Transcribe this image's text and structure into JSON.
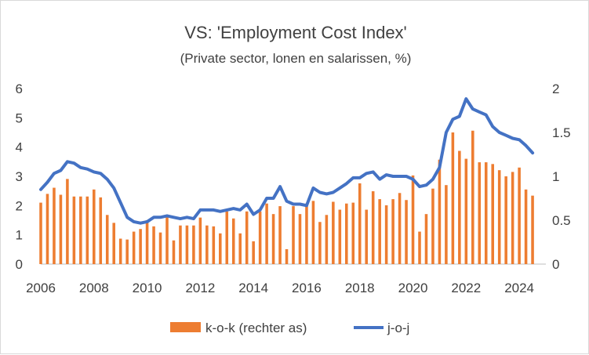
{
  "chart_data": {
    "type": "bar+line",
    "title": "VS: 'Employment Cost Index'",
    "subtitle": "(Private sector, lonen en salarissen, %)",
    "x_tick_labels": [
      "2006",
      "2008",
      "2010",
      "2012",
      "2014",
      "2016",
      "2018",
      "2020",
      "2022",
      "2024"
    ],
    "left_axis": {
      "ylim": [
        0,
        6
      ],
      "ticks": [
        "0",
        "1",
        "2",
        "3",
        "4",
        "5",
        "6"
      ]
    },
    "right_axis": {
      "ylim": [
        0,
        2
      ],
      "ticks": [
        "0",
        "0.5",
        "1",
        "1.5",
        "2"
      ]
    },
    "legend": {
      "placement": "bottom"
    },
    "series": [
      {
        "name": "k-o-k (rechter as)",
        "type": "bar",
        "axis": "right",
        "color": "#ED7D31",
        "start": "2006Q1",
        "frequency": "quarterly",
        "values": [
          0.7,
          0.8,
          0.87,
          0.79,
          0.97,
          0.77,
          0.77,
          0.77,
          0.85,
          0.76,
          0.56,
          0.47,
          0.29,
          0.28,
          0.37,
          0.4,
          0.5,
          0.43,
          0.36,
          0.54,
          0.27,
          0.44,
          0.44,
          0.44,
          0.53,
          0.44,
          0.43,
          0.35,
          0.6,
          0.52,
          0.35,
          0.6,
          0.26,
          0.6,
          0.69,
          0.57,
          0.66,
          0.17,
          0.66,
          0.57,
          0.69,
          0.72,
          0.48,
          0.56,
          0.71,
          0.62,
          0.69,
          0.7,
          0.92,
          0.62,
          0.83,
          0.74,
          0.67,
          0.74,
          0.81,
          0.73,
          1.01,
          0.37,
          0.57,
          0.86,
          1.19,
          0.9,
          1.5,
          1.29,
          1.2,
          1.52,
          1.16,
          1.16,
          1.14,
          1.07,
          1.0,
          1.05,
          1.1,
          0.85,
          0.78
        ]
      },
      {
        "name": "j-o-j",
        "type": "line",
        "axis": "left",
        "color": "#4472C4",
        "start": "2006Q1",
        "frequency": "quarterly",
        "values": [
          2.55,
          2.8,
          3.1,
          3.2,
          3.5,
          3.45,
          3.3,
          3.25,
          3.15,
          3.1,
          2.9,
          2.6,
          2.1,
          1.6,
          1.45,
          1.4,
          1.45,
          1.6,
          1.6,
          1.65,
          1.6,
          1.55,
          1.6,
          1.55,
          1.85,
          1.85,
          1.85,
          1.8,
          1.85,
          1.9,
          1.85,
          2.05,
          1.7,
          1.85,
          2.25,
          2.25,
          2.65,
          2.15,
          2.05,
          2.05,
          2.0,
          2.6,
          2.45,
          2.4,
          2.45,
          2.6,
          2.75,
          2.95,
          2.95,
          3.1,
          3.15,
          2.9,
          3.05,
          3.0,
          3.0,
          3.0,
          2.9,
          2.65,
          2.7,
          2.9,
          3.3,
          4.5,
          4.95,
          5.05,
          5.65,
          5.3,
          5.2,
          5.1,
          4.7,
          4.5,
          4.4,
          4.3,
          4.25,
          4.05,
          3.8
        ]
      }
    ]
  }
}
